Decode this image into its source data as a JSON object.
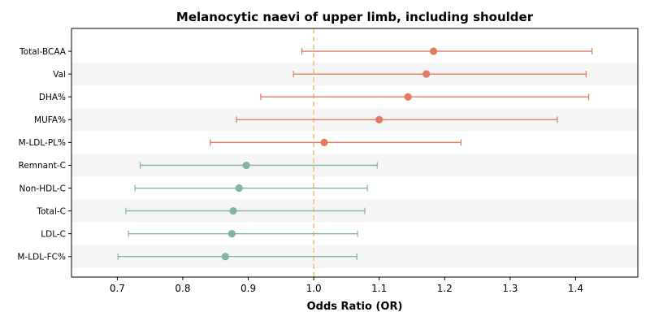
{
  "chart_data": {
    "type": "forest",
    "title": "Melanocytic naevi of upper limb, including shoulder",
    "xlabel": "Odds Ratio (OR)",
    "xlim": [
      0.63,
      1.495
    ],
    "xticks": [
      "0.7",
      "0.8",
      "0.9",
      "1.0",
      "1.1",
      "1.2",
      "1.3",
      "1.4"
    ],
    "reference_line": 1.0,
    "colors": {
      "positive": "#e07b5f",
      "negative": "#84b59c",
      "reference": "#f0c27f",
      "band": "#f5f5f5"
    },
    "rows": [
      {
        "label": "Total-BCAA",
        "or": 1.183,
        "lo": 0.982,
        "hi": 1.425
      },
      {
        "label": "Val",
        "or": 1.172,
        "lo": 0.969,
        "hi": 1.416
      },
      {
        "label": "DHA%",
        "or": 1.144,
        "lo": 0.919,
        "hi": 1.42
      },
      {
        "label": "MUFA%",
        "or": 1.1,
        "lo": 0.882,
        "hi": 1.372
      },
      {
        "label": "M-LDL-PL%",
        "or": 1.016,
        "lo": 0.842,
        "hi": 1.225
      },
      {
        "label": "Remnant-C",
        "or": 0.897,
        "lo": 0.735,
        "hi": 1.097
      },
      {
        "label": "Non-HDL-C",
        "or": 0.886,
        "lo": 0.727,
        "hi": 1.082
      },
      {
        "label": "Total-C",
        "or": 0.877,
        "lo": 0.713,
        "hi": 1.078
      },
      {
        "label": "LDL-C",
        "or": 0.875,
        "lo": 0.717,
        "hi": 1.067
      },
      {
        "label": "M-LDL-FC%",
        "or": 0.865,
        "lo": 0.701,
        "hi": 1.066
      }
    ]
  }
}
